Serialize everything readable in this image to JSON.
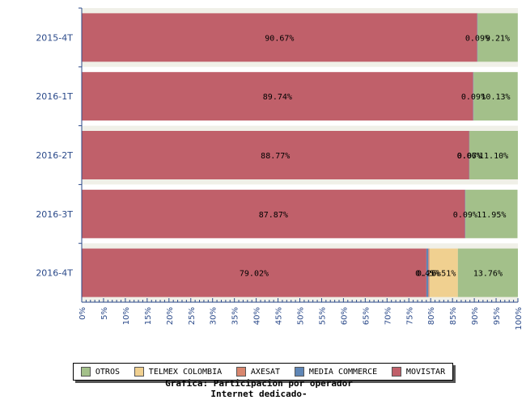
{
  "chart_data": {
    "type": "bar",
    "orientation": "horizontal",
    "stacked": true,
    "categories": [
      "2015-4T",
      "2016-1T",
      "2016-2T",
      "2016-3T",
      "2016-4T"
    ],
    "series": [
      {
        "name": "MOVISTAR",
        "color": "#c0606a",
        "values": [
          90.67,
          89.74,
          88.77,
          87.87,
          79.02
        ],
        "labels": [
          "90.67%",
          "89.74%",
          "88.77%",
          "87.87%",
          "79.02%"
        ]
      },
      {
        "name": "MEDIA COMMERCE",
        "color": "#5f86b6",
        "values": [
          0.09,
          0.09,
          0.06,
          0.09,
          0.45
        ],
        "labels": [
          "0.09%",
          "0.09%",
          "0.06%",
          "0.09%",
          "0.45%"
        ]
      },
      {
        "name": "AXESAT",
        "color": "#d8866e",
        "values": [
          0.0,
          0.0,
          0.07,
          0.0,
          0.26
        ],
        "labels": [
          "",
          "",
          "0.07%",
          "",
          "0.26%"
        ]
      },
      {
        "name": "TELMEX COLOMBIA",
        "color": "#f0d090",
        "values": [
          0.0,
          0.0,
          0.0,
          0.0,
          6.51
        ],
        "labels": [
          "",
          "",
          "",
          "",
          "6.51%"
        ]
      },
      {
        "name": "OTROS",
        "color": "#a3c08a",
        "values": [
          9.21,
          10.13,
          11.1,
          11.95,
          13.76
        ],
        "labels": [
          "9.21%",
          "10.13%",
          "11.10%",
          "11.95%",
          "13.76%"
        ]
      }
    ],
    "xlim": [
      0,
      100
    ],
    "x_ticks": [
      "0%",
      "5%",
      "10%",
      "15%",
      "20%",
      "25%",
      "30%",
      "35%",
      "40%",
      "45%",
      "50%",
      "55%",
      "60%",
      "65%",
      "70%",
      "75%",
      "80%",
      "85%",
      "90%",
      "95%",
      "100%"
    ],
    "x_tick_values": [
      0,
      5,
      10,
      15,
      20,
      25,
      30,
      35,
      40,
      45,
      50,
      55,
      60,
      65,
      70,
      75,
      80,
      85,
      90,
      95,
      100
    ],
    "legend_position": "bottom",
    "legend_order": [
      "OTROS",
      "TELMEX COLOMBIA",
      "AXESAT",
      "MEDIA COMMERCE",
      "MOVISTAR"
    ],
    "caption_line1": "Grafica: Participacion por operador",
    "caption_line2": "Internet dedicado-",
    "band_color": "#f0f0e8",
    "axis_color": "#2b4a8a"
  }
}
